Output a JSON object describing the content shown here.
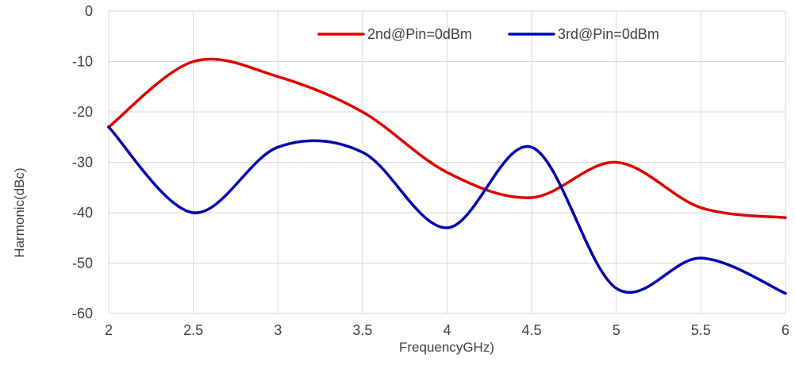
{
  "chart_data": {
    "type": "line",
    "xlabel": "FrequencyGHz)",
    "ylabel": "Harmonic(dBc)",
    "xlim": [
      2,
      6
    ],
    "ylim": [
      -60,
      0
    ],
    "x_ticks": [
      "2",
      "2.5",
      "3",
      "3.5",
      "4",
      "4.5",
      "5",
      "5.5",
      "6"
    ],
    "y_ticks": [
      "0",
      "-10",
      "-20",
      "-30",
      "-40",
      "-50",
      "-60"
    ],
    "grid": "vertical and horizontal",
    "legend_position": "top-right",
    "series": [
      {
        "name": "2nd@Pin=0dBm",
        "color": "#e00000",
        "x": [
          2,
          2.5,
          3,
          3.5,
          4,
          4.5,
          5,
          5.5,
          6
        ],
        "values": [
          -23,
          -10,
          -13,
          -20,
          -32,
          -37,
          -30,
          -39,
          -41
        ]
      },
      {
        "name": "3rd@Pin=0dBm",
        "color": "#0000b0",
        "x": [
          2,
          2.5,
          3,
          3.5,
          4,
          4.5,
          5,
          5.5,
          6
        ],
        "values": [
          -23,
          -40,
          -27,
          -28,
          -43,
          -27,
          -55,
          -49,
          -56
        ]
      }
    ]
  }
}
